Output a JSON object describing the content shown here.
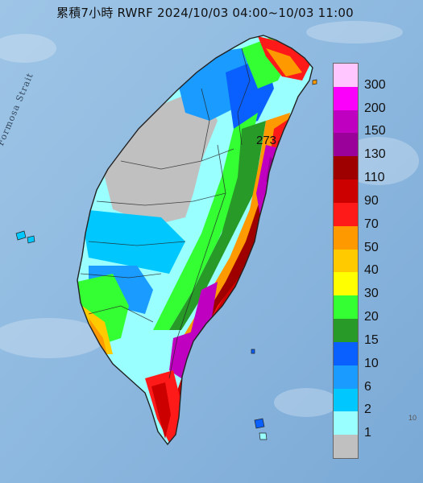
{
  "title": "累積7小時 RWRF 2024/10/03 04:00~10/03 11:00",
  "strait_label": "Formosa Strait",
  "max_value_label": "273",
  "corner_label": "10",
  "legend": {
    "levels": [
      "300",
      "200",
      "150",
      "130",
      "110",
      "90",
      "70",
      "50",
      "40",
      "30",
      "20",
      "15",
      "10",
      "6",
      "2",
      "1"
    ],
    "colors": [
      "#ffc6ff",
      "#fb00fb",
      "#c000c0",
      "#9a009a",
      "#9e0000",
      "#cd0000",
      "#ff1a1a",
      "#ff9900",
      "#ffcb00",
      "#ffff00",
      "#33ff33",
      "#289a28",
      "#0a60ff",
      "#199bff",
      "#00c8ff",
      "#99ffff",
      "#c0c0c0"
    ]
  },
  "colors": {
    "sea": "#8fbde3",
    "land_outline": "#222222"
  }
}
